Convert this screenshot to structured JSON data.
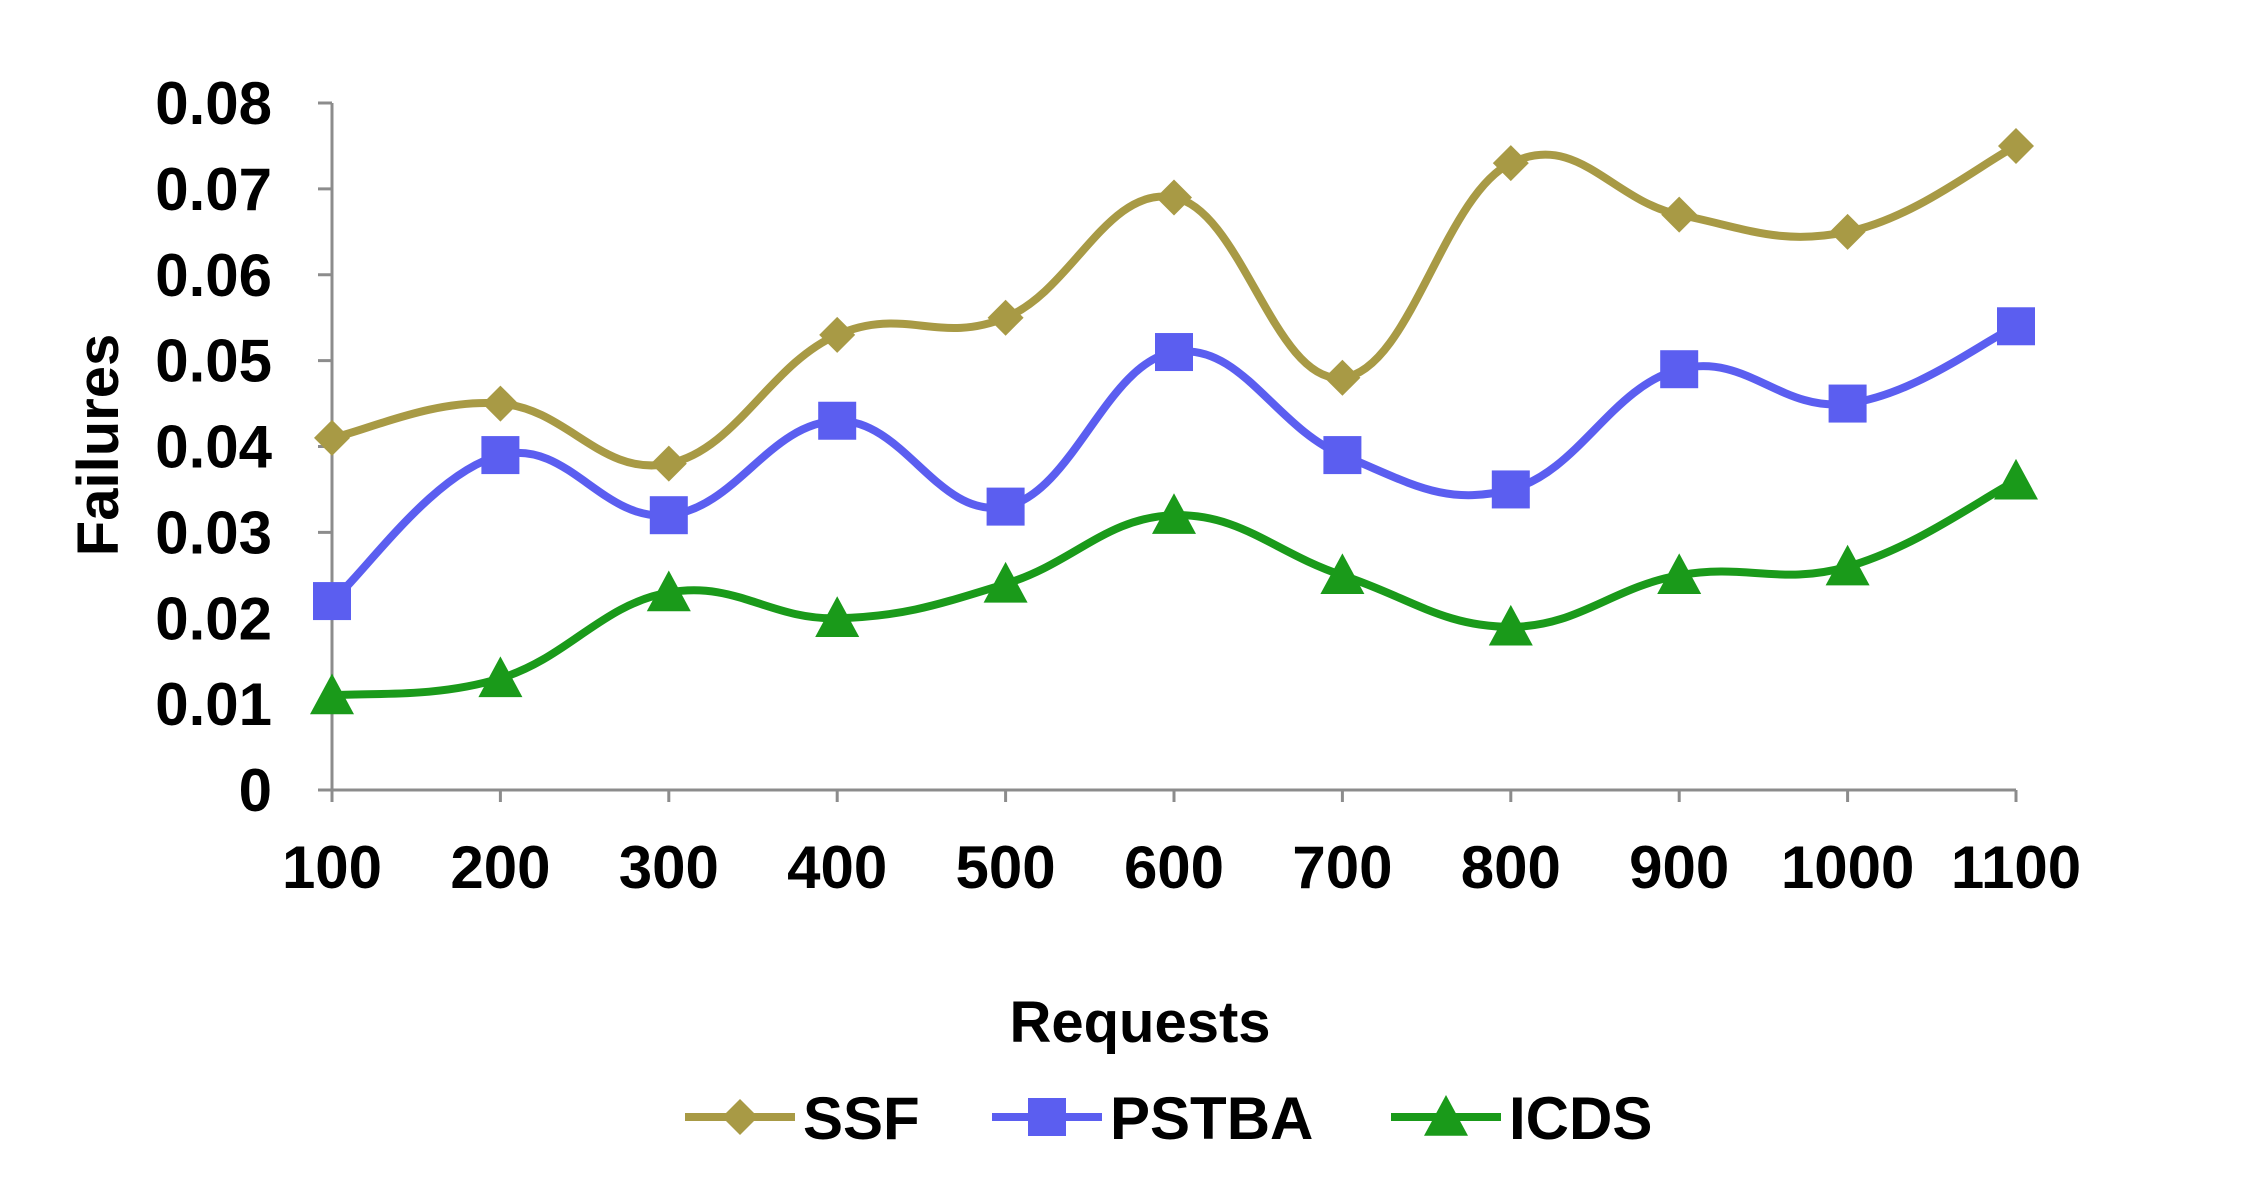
{
  "chart_data": {
    "type": "line",
    "title": "",
    "xlabel": "Requests",
    "ylabel": "Failures",
    "categories": [
      "100",
      "200",
      "300",
      "400",
      "500",
      "600",
      "700",
      "800",
      "900",
      "1000",
      "1100"
    ],
    "y_ticks": [
      "0",
      "0.01",
      "0.02",
      "0.03",
      "0.04",
      "0.05",
      "0.06",
      "0.07",
      "0.08"
    ],
    "ylim": [
      0,
      0.08
    ],
    "grid": false,
    "smooth": true,
    "legend_position": "bottom",
    "series": [
      {
        "name": "SSF",
        "color": "#a89a45",
        "marker": "diamond",
        "values": [
          0.041,
          0.045,
          0.038,
          0.053,
          0.055,
          0.069,
          0.048,
          0.073,
          0.067,
          0.065,
          0.075
        ]
      },
      {
        "name": "PSTBA",
        "color": "#5b5ef0",
        "marker": "square",
        "values": [
          0.022,
          0.039,
          0.032,
          0.043,
          0.033,
          0.051,
          0.039,
          0.035,
          0.049,
          0.045,
          0.054
        ]
      },
      {
        "name": "ICDS",
        "color": "#1a9a1a",
        "marker": "triangle",
        "values": [
          0.011,
          0.013,
          0.023,
          0.02,
          0.024,
          0.032,
          0.025,
          0.019,
          0.025,
          0.026,
          0.036
        ]
      }
    ]
  }
}
